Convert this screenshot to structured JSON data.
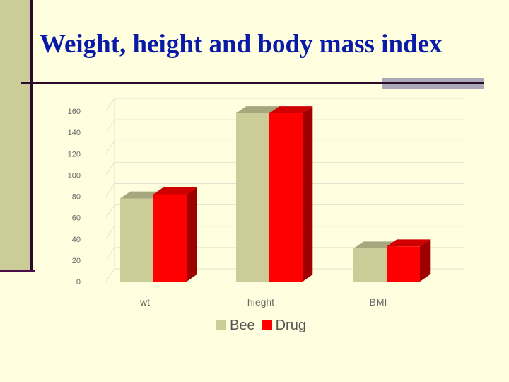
{
  "slide": {
    "title": "Weight, height and body mass index"
  },
  "colors": {
    "background": "#ffffe0",
    "title": "#0a1aa8",
    "series_bee": "#cccc99",
    "series_drug": "#ff0000"
  },
  "chart_data": {
    "type": "bar",
    "style": "3d-clustered-column",
    "categories": [
      "wt",
      "hieght",
      "BMI"
    ],
    "series": [
      {
        "name": "Bee",
        "values": [
          78,
          158,
          31
        ],
        "color": "#cccc99"
      },
      {
        "name": "Drug",
        "values": [
          82,
          158,
          33
        ],
        "color": "#ff0000"
      }
    ],
    "ylim": [
      0,
      160
    ],
    "yticks": [
      "0",
      "20",
      "40",
      "60",
      "80",
      "100",
      "120",
      "140",
      "160"
    ],
    "grid": true,
    "legend": "bottom",
    "title": "",
    "xlabel": "",
    "ylabel": ""
  }
}
